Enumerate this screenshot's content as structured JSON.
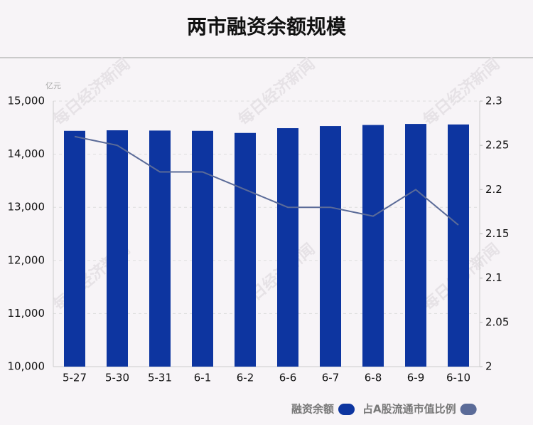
{
  "chart_data": {
    "type": "bar",
    "title": "两市融资余额规模",
    "y_unit": "亿元",
    "watermark": "每日经济新闻",
    "categories": [
      "5-27",
      "5-30",
      "5-31",
      "6-1",
      "6-2",
      "6-6",
      "6-7",
      "6-8",
      "6-9",
      "6-10"
    ],
    "series": [
      {
        "name": "融资余额",
        "color": "#0d35a0",
        "type": "bar",
        "values": [
          14440,
          14450,
          14445,
          14440,
          14400,
          14490,
          14530,
          14550,
          14570,
          14560
        ]
      },
      {
        "name": "占A股流通市值比例",
        "color": "#5b6b98",
        "type": "line",
        "axis": "y2",
        "values": [
          2.26,
          2.25,
          2.22,
          2.22,
          2.2,
          2.18,
          2.18,
          2.17,
          2.2,
          2.16
        ]
      }
    ],
    "ylim": [
      10000,
      15000
    ],
    "yticks": [
      {
        "value": 10000,
        "label": "10,000"
      },
      {
        "value": 11000,
        "label": "11,000"
      },
      {
        "value": 12000,
        "label": "12,000"
      },
      {
        "value": 13000,
        "label": "13,000"
      },
      {
        "value": 14000,
        "label": "14,000"
      },
      {
        "value": 15000,
        "label": "15,000"
      }
    ],
    "y2lim": [
      2,
      2.3
    ],
    "y2ticks": [
      2,
      2.05,
      2.1,
      2.15,
      2.2,
      2.25,
      2.3
    ],
    "grid": true
  }
}
